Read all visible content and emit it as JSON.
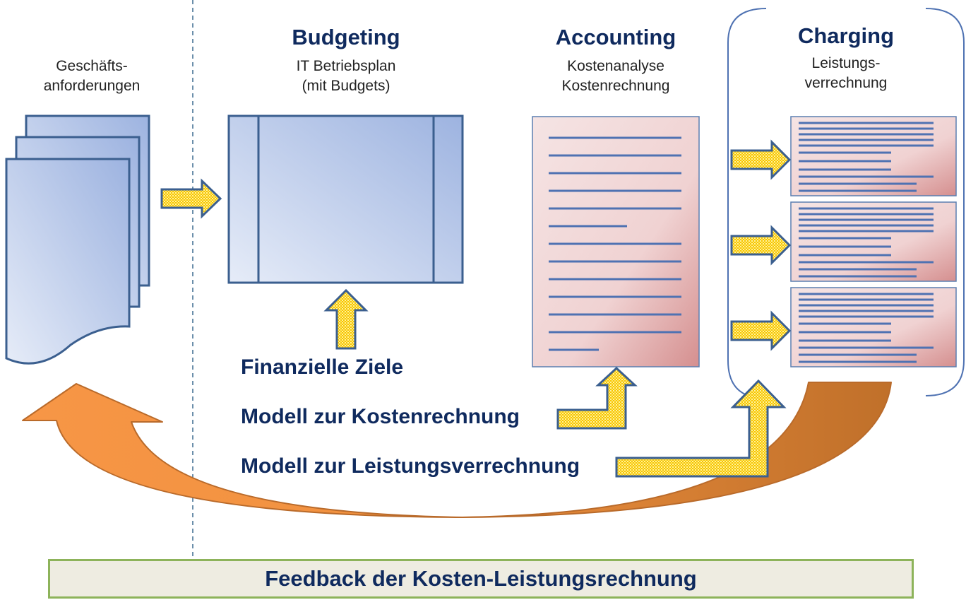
{
  "labels": {
    "requirements": [
      "Geschäfts-",
      "anforderungen"
    ],
    "budgeting_title": "Budgeting",
    "budgeting_sub": [
      "IT Betriebsplan",
      "(mit Budgets)"
    ],
    "accounting_title": "Accounting",
    "accounting_sub": [
      "Kostenanalyse",
      "Kostenrechnung"
    ],
    "charging_title": "Charging",
    "charging_sub": [
      "Leistungs-",
      "verrechnung"
    ]
  },
  "inputs": {
    "financial_goals": "Finanzielle Ziele",
    "cost_model": "Modell zur Kostenrechnung",
    "charging_model": "Modell zur Leistungsverrechnung"
  },
  "footer": {
    "feedback": "Feedback der Kosten-Leistungsrechnung"
  },
  "colors": {
    "navy_text": "#0f2a5e",
    "blue_stroke": "#3b5f8f",
    "yellow_arrow": "#f5c400",
    "orange_light": "#f79646",
    "orange_dark": "#c0702a",
    "pink_doc": "#f2d9d9",
    "green_border": "#8db35a",
    "footer_fill": "#eeece1"
  }
}
